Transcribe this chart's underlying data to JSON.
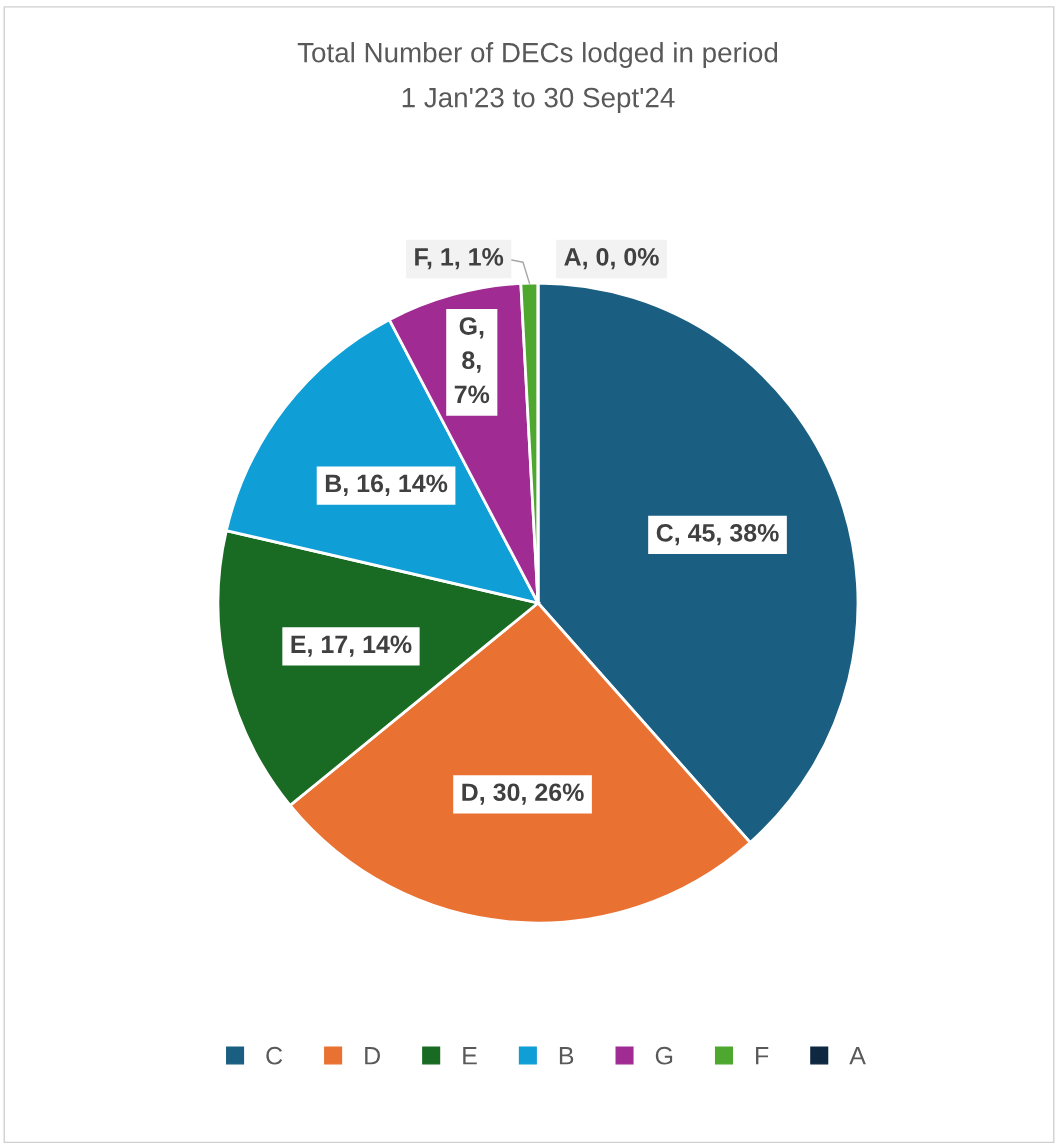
{
  "chart_data": {
    "type": "pie",
    "title": "Total Number of DECs lodged in period",
    "subtitle": "1 Jan'23 to 30 Sept'24",
    "categories": [
      "C",
      "D",
      "E",
      "B",
      "G",
      "F",
      "A"
    ],
    "values": [
      45,
      30,
      17,
      16,
      8,
      1,
      0
    ],
    "colors": [
      "#1a5f82",
      "#e97132",
      "#196b24",
      "#0f9ed5",
      "#a02b93",
      "#4ea72e",
      "#0e2841"
    ],
    "value_labels": [
      "C, 45, 38%",
      "D, 30, 26%",
      "E, 17, 14%",
      "B, 16, 14%",
      "G, 8, 7%",
      "F, 1, 1%",
      "A, 0, 0%"
    ],
    "legend": "bottom"
  }
}
